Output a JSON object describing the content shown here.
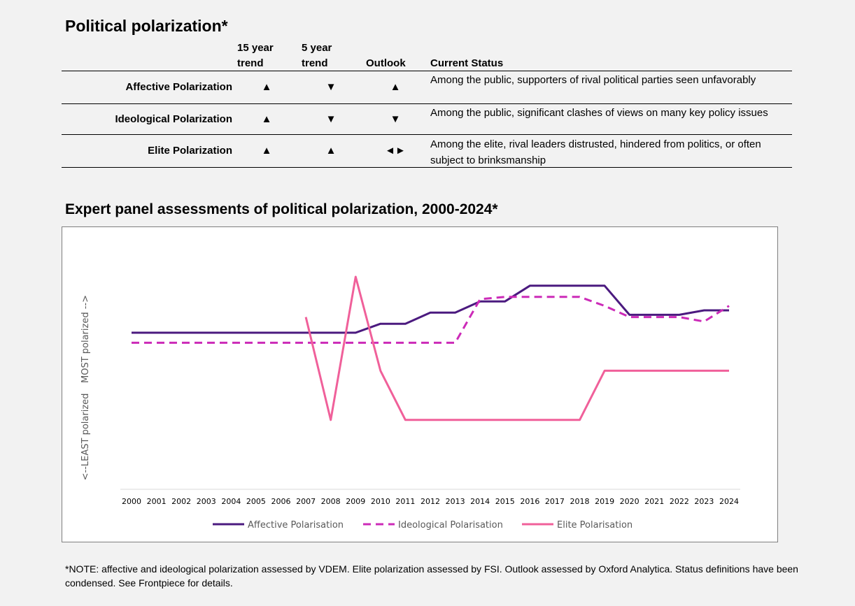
{
  "title": "Political polarization*",
  "table": {
    "headers": {
      "trend15": "15 year trend",
      "trend5": "5 year trend",
      "outlook": "Outlook",
      "status": "Current Status"
    },
    "rows": [
      {
        "label": "Affective Polarization",
        "trend15": "▲",
        "trend5": "▼",
        "outlook": "▲",
        "status": "Among the public, supporters of rival political parties seen unfavorably"
      },
      {
        "label": "Ideological Polarization",
        "trend15": "▲",
        "trend5": "▼",
        "outlook": "▼",
        "status": "Among the public, significant clashes of views on many key policy issues"
      },
      {
        "label": "Elite Polarization",
        "trend15": "▲",
        "trend5": "▲",
        "outlook": "◄►",
        "status": "Among the elite, rival leaders distrusted, hindered from politics, or often subject to brinksmanship"
      }
    ]
  },
  "chart_title": "Expert panel assessments of political polarization, 2000-2024*",
  "chart_data": {
    "type": "line",
    "title": "Expert panel assessments of political polarization, 2000-2024*",
    "ylabel_top": "MOST polarized -->",
    "ylabel_bottom": "<--LEAST polarized",
    "ylim": [
      0,
      100
    ],
    "x": [
      "2000",
      "2001",
      "2002",
      "2003",
      "2004",
      "2005",
      "2006",
      "2007",
      "2008",
      "2009",
      "2010",
      "2011",
      "2012",
      "2013",
      "2014",
      "2015",
      "2016",
      "2017",
      "2018",
      "2019",
      "2020",
      "2021",
      "2022",
      "2023",
      "2024"
    ],
    "series": [
      {
        "name": "Affective Polarisation",
        "color": "#4b1a7f",
        "style": "solid",
        "values": [
          70,
          70,
          70,
          70,
          70,
          70,
          70,
          70,
          70,
          70,
          74,
          74,
          79,
          79,
          84,
          84,
          91,
          91,
          91,
          91,
          78,
          78,
          78,
          80,
          80
        ]
      },
      {
        "name": "Ideological Polarisation",
        "color": "#cc2bb8",
        "style": "dashed",
        "values": [
          65.5,
          65.5,
          65.5,
          65.5,
          65.5,
          65.5,
          65.5,
          65.5,
          65.5,
          65.5,
          65.5,
          65.5,
          65.5,
          65.5,
          85,
          86,
          86,
          86,
          86,
          82,
          77,
          77,
          77,
          75,
          82
        ]
      },
      {
        "name": "Elite Polarisation",
        "color": "#f0609a",
        "style": "solid",
        "values": [
          null,
          null,
          null,
          null,
          null,
          null,
          null,
          77,
          31,
          95,
          53,
          31,
          31,
          31,
          31,
          31,
          31,
          31,
          31,
          53,
          53,
          53,
          53,
          53,
          53
        ]
      }
    ],
    "legend_position": "bottom",
    "grid": false
  },
  "note": "*NOTE: affective and ideological polarization assessed by VDEM. Elite polarization assessed by FSI. Outlook assessed by Oxford Analytica. Status definitions have been condensed. See Frontpiece for details."
}
